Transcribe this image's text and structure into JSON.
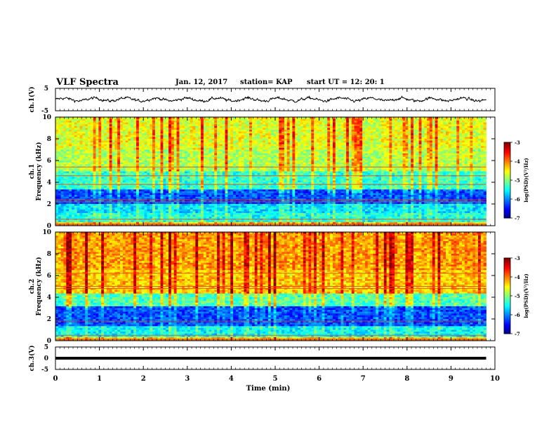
{
  "header": {
    "title": "VLF Spectra",
    "date": "Jan. 12, 2017",
    "station": "station= KAP",
    "start": "start  UT =   12: 20: 1"
  },
  "chart_data": [
    {
      "type": "line",
      "panel": "ch1-waveform",
      "ylabel": "ch.1(V)",
      "ylim": [
        -5,
        5
      ],
      "yticks": [
        "5",
        "-5"
      ],
      "xlim": [
        0,
        10
      ],
      "x_end": 9.8,
      "description_level": "noisy signal around 0 V, roughly between -2.5 and 2.5 V"
    },
    {
      "type": "heatmap",
      "panel": "ch1-spectrogram",
      "ylabel": "ch.1 Frequency (kHz)",
      "ylim": [
        0,
        10
      ],
      "yticks": [
        "0",
        "2",
        "4",
        "6",
        "8",
        "10"
      ],
      "xlim": [
        0,
        10
      ],
      "x_end": 9.8,
      "colorbar": {
        "label": "log(PSD)(V²/Hz)",
        "range": [
          -7,
          -3
        ],
        "ticks": [
          "-3",
          "-4",
          "-5",
          "-6",
          "-7"
        ]
      },
      "bands": [
        {
          "f0": 0,
          "f1": 0.3,
          "level": -4.3
        },
        {
          "f0": 0.3,
          "f1": 1.2,
          "level": -5.4
        },
        {
          "f0": 1.2,
          "f1": 2.0,
          "level": -5.6
        },
        {
          "f0": 2.0,
          "f1": 3.4,
          "level": -6.2
        },
        {
          "f0": 3.4,
          "f1": 5.0,
          "level": -5.3
        },
        {
          "f0": 5.0,
          "f1": 7.0,
          "level": -4.8
        },
        {
          "f0": 7.0,
          "f1": 10.0,
          "level": -4.6
        }
      ],
      "lines_khz": [
        0.6,
        2.2,
        2.4,
        3.8,
        4.6,
        5.4
      ]
    },
    {
      "type": "heatmap",
      "panel": "ch2-spectrogram",
      "ylabel": "ch.2 Frequency (kHz)",
      "ylim": [
        0,
        10
      ],
      "yticks": [
        "0",
        "2",
        "4",
        "6",
        "8",
        "10"
      ],
      "xlim": [
        0,
        10
      ],
      "x_end": 9.8,
      "colorbar": {
        "label": "log(PSD)(V²/Hz)",
        "range": [
          -7,
          -3
        ],
        "ticks": [
          "-3",
          "-4",
          "-5",
          "-6",
          "-7"
        ]
      },
      "bands": [
        {
          "f0": 0,
          "f1": 0.3,
          "level": -4.4
        },
        {
          "f0": 0.3,
          "f1": 1.4,
          "level": -5.5
        },
        {
          "f0": 1.4,
          "f1": 3.2,
          "level": -6.2
        },
        {
          "f0": 3.2,
          "f1": 4.4,
          "level": -5.2
        },
        {
          "f0": 4.4,
          "f1": 6.5,
          "level": -4.3
        },
        {
          "f0": 6.5,
          "f1": 10.0,
          "level": -4.1
        }
      ],
      "lines_khz": [
        0.5,
        1.8,
        4.8,
        5.0,
        6.2
      ]
    },
    {
      "type": "line",
      "panel": "ch3-waveform",
      "ylabel": "ch.3(V)",
      "ylim": [
        -5,
        5
      ],
      "yticks": [
        "5",
        "0",
        "-5"
      ],
      "xlim": [
        0,
        10
      ],
      "x_end": 9.8,
      "constant_value": 0,
      "xlabel": "Time  (min)",
      "xticks": [
        "0",
        "1",
        "2",
        "3",
        "4",
        "5",
        "6",
        "7",
        "8",
        "9",
        "10"
      ]
    }
  ]
}
